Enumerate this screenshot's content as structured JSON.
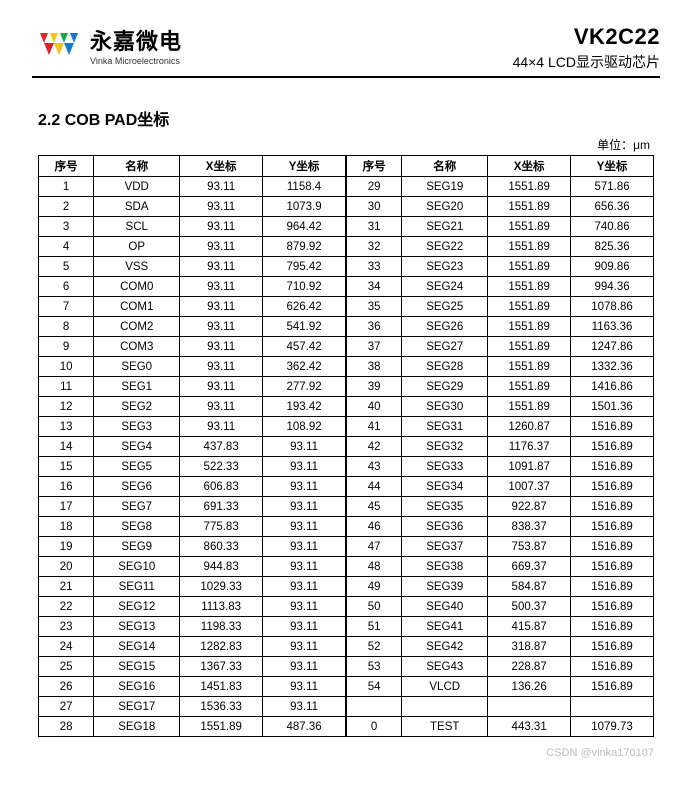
{
  "header": {
    "logo_cn": "永嘉微电",
    "logo_en": "Vinka Microelectronics",
    "part_no": "VK2C22",
    "part_desc": "44×4 LCD显示驱动芯片",
    "logo_colors": [
      "#d9262c",
      "#f6c21b",
      "#1aa24a",
      "#1778c8"
    ]
  },
  "section": {
    "title": "2.2  COB PAD坐标",
    "unit": "单位：μm"
  },
  "columns": {
    "idx": "序号",
    "name": "名称",
    "x": "X坐标",
    "y": "Y坐标"
  },
  "left_rows": [
    {
      "idx": "1",
      "name": "VDD",
      "x": "93.11",
      "y": "1158.4"
    },
    {
      "idx": "2",
      "name": "SDA",
      "x": "93.11",
      "y": "1073.9"
    },
    {
      "idx": "3",
      "name": "SCL",
      "x": "93.11",
      "y": "964.42"
    },
    {
      "idx": "4",
      "name": "OP",
      "x": "93.11",
      "y": "879.92"
    },
    {
      "idx": "5",
      "name": "VSS",
      "x": "93.11",
      "y": "795.42"
    },
    {
      "idx": "6",
      "name": "COM0",
      "x": "93.11",
      "y": "710.92"
    },
    {
      "idx": "7",
      "name": "COM1",
      "x": "93.11",
      "y": "626.42"
    },
    {
      "idx": "8",
      "name": "COM2",
      "x": "93.11",
      "y": "541.92"
    },
    {
      "idx": "9",
      "name": "COM3",
      "x": "93.11",
      "y": "457.42"
    },
    {
      "idx": "10",
      "name": "SEG0",
      "x": "93.11",
      "y": "362.42"
    },
    {
      "idx": "11",
      "name": "SEG1",
      "x": "93.11",
      "y": "277.92"
    },
    {
      "idx": "12",
      "name": "SEG2",
      "x": "93.11",
      "y": "193.42"
    },
    {
      "idx": "13",
      "name": "SEG3",
      "x": "93.11",
      "y": "108.92"
    },
    {
      "idx": "14",
      "name": "SEG4",
      "x": "437.83",
      "y": "93.11"
    },
    {
      "idx": "15",
      "name": "SEG5",
      "x": "522.33",
      "y": "93.11"
    },
    {
      "idx": "16",
      "name": "SEG6",
      "x": "606.83",
      "y": "93.11"
    },
    {
      "idx": "17",
      "name": "SEG7",
      "x": "691.33",
      "y": "93.11"
    },
    {
      "idx": "18",
      "name": "SEG8",
      "x": "775.83",
      "y": "93.11"
    },
    {
      "idx": "19",
      "name": "SEG9",
      "x": "860.33",
      "y": "93.11"
    },
    {
      "idx": "20",
      "name": "SEG10",
      "x": "944.83",
      "y": "93.11"
    },
    {
      "idx": "21",
      "name": "SEG11",
      "x": "1029.33",
      "y": "93.11"
    },
    {
      "idx": "22",
      "name": "SEG12",
      "x": "1113.83",
      "y": "93.11"
    },
    {
      "idx": "23",
      "name": "SEG13",
      "x": "1198.33",
      "y": "93.11"
    },
    {
      "idx": "24",
      "name": "SEG14",
      "x": "1282.83",
      "y": "93.11"
    },
    {
      "idx": "25",
      "name": "SEG15",
      "x": "1367.33",
      "y": "93.11"
    },
    {
      "idx": "26",
      "name": "SEG16",
      "x": "1451.83",
      "y": "93.11"
    },
    {
      "idx": "27",
      "name": "SEG17",
      "x": "1536.33",
      "y": "93.11"
    },
    {
      "idx": "28",
      "name": "SEG18",
      "x": "1551.89",
      "y": "487.36"
    }
  ],
  "right_rows": [
    {
      "idx": "29",
      "name": "SEG19",
      "x": "1551.89",
      "y": "571.86"
    },
    {
      "idx": "30",
      "name": "SEG20",
      "x": "1551.89",
      "y": "656.36"
    },
    {
      "idx": "31",
      "name": "SEG21",
      "x": "1551.89",
      "y": "740.86"
    },
    {
      "idx": "32",
      "name": "SEG22",
      "x": "1551.89",
      "y": "825.36"
    },
    {
      "idx": "33",
      "name": "SEG23",
      "x": "1551.89",
      "y": "909.86"
    },
    {
      "idx": "34",
      "name": "SEG24",
      "x": "1551.89",
      "y": "994.36"
    },
    {
      "idx": "35",
      "name": "SEG25",
      "x": "1551.89",
      "y": "1078.86"
    },
    {
      "idx": "36",
      "name": "SEG26",
      "x": "1551.89",
      "y": "1163.36"
    },
    {
      "idx": "37",
      "name": "SEG27",
      "x": "1551.89",
      "y": "1247.86"
    },
    {
      "idx": "38",
      "name": "SEG28",
      "x": "1551.89",
      "y": "1332.36"
    },
    {
      "idx": "39",
      "name": "SEG29",
      "x": "1551.89",
      "y": "1416.86"
    },
    {
      "idx": "40",
      "name": "SEG30",
      "x": "1551.89",
      "y": "1501.36"
    },
    {
      "idx": "41",
      "name": "SEG31",
      "x": "1260.87",
      "y": "1516.89"
    },
    {
      "idx": "42",
      "name": "SEG32",
      "x": "1176.37",
      "y": "1516.89"
    },
    {
      "idx": "43",
      "name": "SEG33",
      "x": "1091.87",
      "y": "1516.89"
    },
    {
      "idx": "44",
      "name": "SEG34",
      "x": "1007.37",
      "y": "1516.89"
    },
    {
      "idx": "45",
      "name": "SEG35",
      "x": "922.87",
      "y": "1516.89"
    },
    {
      "idx": "46",
      "name": "SEG36",
      "x": "838.37",
      "y": "1516.89"
    },
    {
      "idx": "47",
      "name": "SEG37",
      "x": "753.87",
      "y": "1516.89"
    },
    {
      "idx": "48",
      "name": "SEG38",
      "x": "669.37",
      "y": "1516.89"
    },
    {
      "idx": "49",
      "name": "SEG39",
      "x": "584.87",
      "y": "1516.89"
    },
    {
      "idx": "50",
      "name": "SEG40",
      "x": "500.37",
      "y": "1516.89"
    },
    {
      "idx": "51",
      "name": "SEG41",
      "x": "415.87",
      "y": "1516.89"
    },
    {
      "idx": "52",
      "name": "SEG42",
      "x": "318.87",
      "y": "1516.89"
    },
    {
      "idx": "53",
      "name": "SEG43",
      "x": "228.87",
      "y": "1516.89"
    },
    {
      "idx": "54",
      "name": "VLCD",
      "x": "136.26",
      "y": "1516.89"
    },
    {
      "idx": "",
      "name": "",
      "x": "",
      "y": ""
    },
    {
      "idx": "0",
      "name": "TEST",
      "x": "443.31",
      "y": "1079.73"
    }
  ],
  "watermark": "CSDN @vinka170107"
}
